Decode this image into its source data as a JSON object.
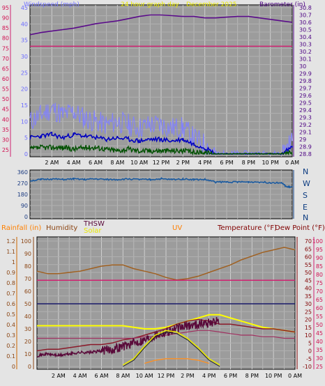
{
  "header": {
    "wind_label": "Windspeed (mph)",
    "graph_title": "24 hour graph day",
    "date_label": "December 2025",
    "baro_label": "Barometer (in)"
  },
  "compass": [
    "N",
    "W",
    "S",
    "E",
    "N"
  ],
  "bottom_header": {
    "rain_label": "Rainfall (in)",
    "humidity_label": "Humidity",
    "thsw_label": "THSW",
    "solar_label": "Solar",
    "uv_label": "UV",
    "temp_label": "Temperature (°F)",
    "dew_label": "Dew Point (°F)"
  },
  "colors": {
    "wind": "#8080ff",
    "gust": "#0000c0",
    "avg": "#005000",
    "barometer": "#5a0a8a",
    "humidity_pct": "#d02070",
    "direction": "#1a5aa0",
    "temperature": "#800060",
    "dewpoint": "#8b1a1a",
    "thsw": "#5a0a3a",
    "solar": "#ffff00",
    "rain": "#ff8000",
    "uv": "#ff9020",
    "humidity": "#a06020",
    "accent_axis": "#cc6600"
  },
  "chart_data": [
    {
      "type": "line",
      "name": "wind-barometer",
      "title": "24 hour graph day",
      "x_ticks": [
        "2 AM",
        "4 AM",
        "6 AM",
        "8 AM",
        "10 AM",
        "12 PM",
        "2 PM",
        "4 PM",
        "6 PM",
        "8 PM",
        "10 PM",
        "0 AM"
      ],
      "y_left_label": "Windspeed (mph)",
      "y_left_ticks": [
        "0",
        "5",
        "10",
        "15",
        "20",
        "25",
        "30",
        "35",
        "40",
        "45"
      ],
      "y_left_ticks_outer": [
        "25",
        "30",
        "35",
        "40",
        "45",
        "50",
        "55",
        "60",
        "65",
        "70",
        "75",
        "80",
        "85",
        "90",
        "95"
      ],
      "y_right_label": "Barometer (in)",
      "y_right_ticks": [
        "28.8",
        "28.9",
        "29",
        "29.1",
        "29.2",
        "29.3",
        "29.4",
        "29.5",
        "29.6",
        "29.7",
        "29.8",
        "29.9",
        "30",
        "30.1",
        "30.2",
        "30.3",
        "30.4",
        "30.5",
        "30.6",
        "30.7",
        "30.8"
      ],
      "series": [
        {
          "x": [
            0,
            1,
            2,
            3,
            4,
            5,
            6,
            7,
            8,
            9,
            10,
            11,
            12,
            13,
            14,
            15,
            16,
            17,
            18,
            19,
            20,
            21,
            22,
            23,
            24
          ],
          "values": [
            30.43,
            30.46,
            30.48,
            30.5,
            30.52,
            30.55,
            30.58,
            30.6,
            30.62,
            30.65,
            30.68,
            30.7,
            30.7,
            30.69,
            30.68,
            30.68,
            30.66,
            30.66,
            30.67,
            30.68,
            30.68,
            30.66,
            30.64,
            30.62,
            30.6
          ]
        },
        {
          "x": [
            0,
            2,
            4,
            6,
            8,
            10,
            12,
            14,
            16,
            18,
            20,
            22,
            24
          ],
          "values": [
            76,
            76,
            76,
            76,
            76,
            76,
            76,
            76,
            76,
            76,
            76,
            76,
            76
          ]
        },
        {
          "x": [
            0,
            1,
            2,
            3,
            4,
            5,
            6,
            7,
            8,
            9,
            10,
            11,
            12,
            13,
            14,
            15,
            16,
            17,
            18,
            19,
            20,
            21,
            22,
            23,
            24
          ],
          "values": [
            5,
            5.5,
            6,
            5,
            6,
            5.5,
            5,
            4.5,
            5,
            4.5,
            4,
            4.5,
            4.5,
            4,
            4.5,
            3,
            2,
            0,
            0,
            0,
            0,
            0,
            0,
            0,
            2
          ]
        },
        {
          "x": [
            0,
            1,
            2,
            3,
            4,
            5,
            6,
            7,
            8,
            9,
            10,
            11,
            12,
            13,
            14,
            15,
            16,
            17,
            18,
            19,
            20,
            21,
            22,
            23,
            24
          ],
          "values": [
            10,
            12,
            14,
            12,
            13,
            11,
            10,
            9,
            10,
            9,
            8,
            9,
            9,
            8,
            8,
            5,
            3,
            0,
            0,
            0,
            0,
            0,
            0,
            0,
            4
          ]
        },
        {
          "x": [
            0,
            1,
            2,
            3,
            4,
            5,
            6,
            7,
            8,
            9,
            10,
            11,
            12,
            13,
            14,
            15,
            16,
            17,
            18,
            19,
            20,
            21,
            22,
            23,
            24
          ],
          "values": [
            1.5,
            2,
            2,
            2,
            1.5,
            2,
            2,
            1.5,
            1,
            1.5,
            1,
            1,
            1,
            1,
            1,
            0.5,
            0.5,
            0,
            0,
            0,
            0,
            0,
            0,
            0,
            0.5
          ]
        }
      ]
    },
    {
      "type": "line",
      "name": "wind-direction",
      "y_ticks": [
        "0",
        "90",
        "180",
        "270",
        "360"
      ],
      "series": [
        {
          "x": [
            0,
            1,
            2,
            3,
            4,
            5,
            6,
            7,
            8,
            9,
            10,
            11,
            12,
            13,
            14,
            15,
            16,
            17,
            18,
            19,
            20,
            21,
            22,
            23,
            23.5,
            24
          ],
          "values": [
            290,
            300,
            305,
            300,
            305,
            300,
            305,
            300,
            300,
            305,
            300,
            300,
            305,
            300,
            305,
            300,
            300,
            280,
            280,
            280,
            280,
            280,
            275,
            275,
            240,
            240
          ]
        }
      ]
    },
    {
      "type": "line",
      "name": "temperature-humidity",
      "x_ticks": [
        "2 AM",
        "4 AM",
        "6 AM",
        "8 AM",
        "10 AM",
        "12 PM",
        "2 PM",
        "4 PM",
        "6 PM",
        "8 PM",
        "10 PM",
        "0 AM"
      ],
      "y_rain_ticks": [
        "0",
        "0.1",
        "0.2",
        "0.3",
        "0.4",
        "0.5",
        "0.6",
        "0.7",
        "0.8",
        "0.9",
        "1",
        "1.1",
        "1.2"
      ],
      "y_humidity_ticks": [
        "0",
        "10",
        "20",
        "30",
        "40",
        "50",
        "60",
        "70",
        "80",
        "90",
        "100"
      ],
      "y_temp_ticks": [
        "-10",
        "-5",
        "0",
        "5",
        "10",
        "15",
        "20",
        "25",
        "30",
        "35",
        "40",
        "45",
        "50",
        "55",
        "60",
        "65",
        "70"
      ],
      "y_temp_ticks_outer": [
        "25",
        "30",
        "35",
        "40",
        "45",
        "50",
        "55",
        "60",
        "65",
        "70",
        "75",
        "80",
        "85",
        "90",
        "95",
        "100"
      ],
      "series": [
        {
          "x": [
            0,
            1,
            2,
            3,
            4,
            5,
            6,
            7,
            8,
            9,
            10,
            11,
            12,
            13,
            14,
            15,
            16,
            17,
            18,
            19,
            20,
            21,
            22,
            23,
            24
          ],
          "values": [
            46,
            44,
            44,
            45,
            46,
            48,
            50,
            51,
            51,
            48,
            46,
            44,
            41,
            39,
            40,
            42,
            45,
            48,
            51,
            55,
            58,
            61,
            63,
            65,
            63
          ]
        },
        {
          "x": [
            0,
            2,
            4,
            6,
            8,
            10,
            12,
            14,
            16,
            18,
            20,
            22,
            24
          ],
          "values": [
            45,
            45,
            45,
            45,
            45,
            45,
            45,
            45,
            45,
            45,
            45,
            45,
            45
          ]
        },
        {
          "x": [
            0,
            2,
            4,
            6,
            8,
            10,
            12,
            14,
            16,
            18,
            20,
            22,
            24
          ],
          "values": [
            30,
            30,
            30,
            30,
            30,
            30,
            30,
            30,
            30,
            30,
            30,
            30,
            30
          ]
        },
        {
          "x": [
            0,
            1,
            2,
            3,
            4,
            5,
            6,
            7,
            8,
            9,
            10,
            11,
            12,
            13,
            14,
            15,
            16,
            17,
            18,
            19,
            20,
            21,
            22,
            23,
            24
          ],
          "values": [
            0,
            1,
            1,
            2,
            3,
            4,
            4,
            5,
            7,
            8,
            10,
            12,
            14,
            17,
            19,
            20,
            19,
            17,
            17,
            16,
            15,
            14,
            14,
            13,
            12
          ]
        },
        {
          "x": [
            0,
            1,
            2,
            3,
            4,
            5,
            6,
            7,
            8,
            9,
            10,
            11,
            12,
            13,
            14,
            15,
            16,
            17,
            18,
            19,
            20,
            21,
            22,
            23,
            24
          ],
          "values": [
            16,
            16,
            16,
            16,
            16,
            16,
            16,
            16,
            16,
            15,
            14,
            14,
            15,
            17,
            19,
            21,
            23,
            23,
            21,
            19,
            17,
            15,
            14,
            13,
            12
          ]
        },
        {
          "x": [
            0,
            1,
            2,
            3,
            4,
            5,
            6,
            7,
            8,
            9,
            10,
            11,
            12,
            13,
            14,
            15,
            16,
            17,
            18,
            19,
            20,
            21,
            22,
            23,
            24
          ],
          "values": [
            8,
            8,
            8,
            8,
            8,
            8,
            8,
            8,
            8,
            8,
            9,
            9,
            10,
            11,
            12,
            13,
            13,
            12,
            11,
            10,
            10,
            9,
            9,
            8,
            8
          ]
        },
        {
          "x": [
            0,
            1,
            2,
            3,
            4,
            5,
            6,
            7,
            8,
            9,
            10,
            11,
            12,
            13,
            14,
            15,
            16,
            17,
            18,
            19,
            20,
            21,
            22,
            23,
            24
          ],
          "values": [
            -3,
            -2,
            -3,
            -2,
            -1,
            -1,
            0,
            1,
            3,
            5,
            7,
            10,
            12,
            14,
            16,
            17,
            18,
            19,
            null,
            null,
            null,
            null,
            null,
            null,
            14
          ]
        },
        {
          "x": [
            8,
            9,
            10,
            11,
            12,
            13,
            14,
            15,
            16,
            17
          ],
          "values": [
            -9,
            -5,
            3,
            10,
            13,
            12,
            8,
            2,
            -5,
            -9
          ]
        },
        {
          "x": [
            10,
            11,
            12,
            13,
            14,
            15,
            16
          ],
          "values": [
            -8,
            -6,
            -5,
            -5,
            -5,
            -6,
            -8
          ]
        }
      ]
    }
  ]
}
